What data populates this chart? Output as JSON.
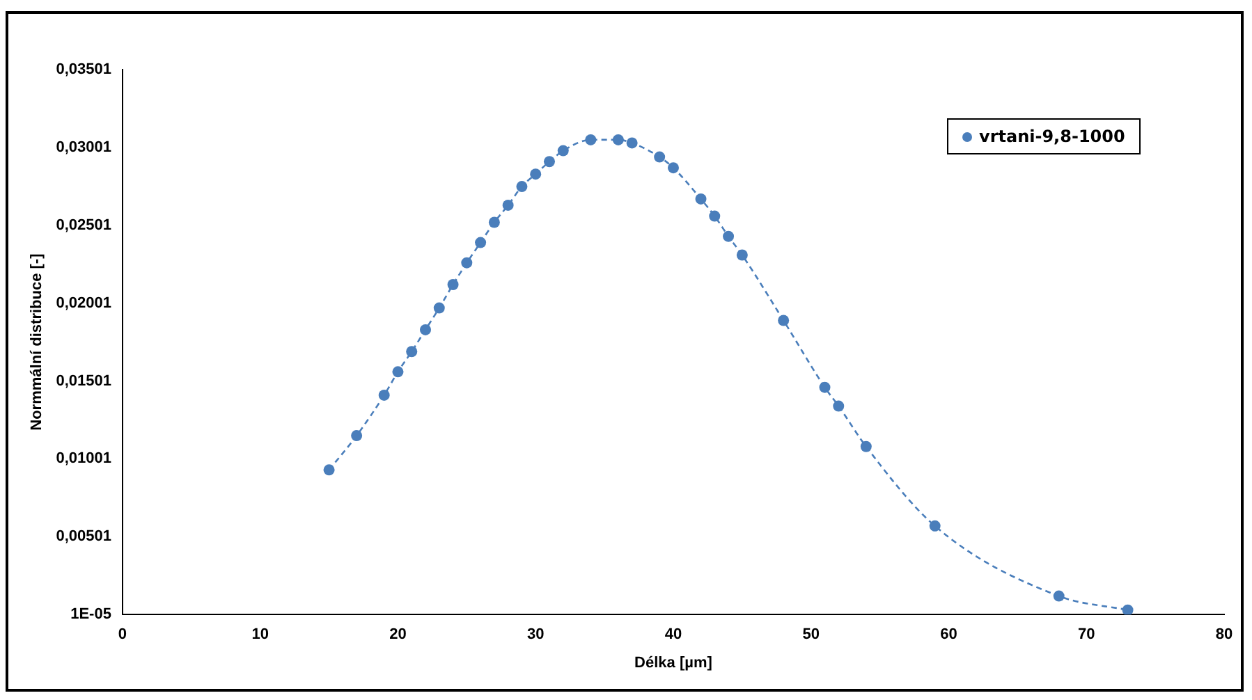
{
  "chart_data": {
    "type": "line",
    "xlabel": "Délka [µm]",
    "ylabel": "Normmální distribuce [-]",
    "x": [
      15,
      17,
      19,
      20,
      21,
      22,
      23,
      24,
      25,
      26,
      27,
      28,
      29,
      30,
      31,
      32,
      34,
      36,
      37,
      39,
      40,
      42,
      43,
      44,
      45,
      48,
      51,
      52,
      54,
      59,
      68,
      73
    ],
    "series": [
      {
        "name": "vrtani-9,8-1000",
        "color": "#4a7ebb",
        "values": [
          0.0093,
          0.0115,
          0.0141,
          0.0156,
          0.0169,
          0.0183,
          0.0197,
          0.0212,
          0.0226,
          0.0239,
          0.0252,
          0.0263,
          0.0275,
          0.0283,
          0.0291,
          0.0298,
          0.0305,
          0.0305,
          0.0303,
          0.0294,
          0.0287,
          0.0267,
          0.0256,
          0.0243,
          0.0231,
          0.0189,
          0.0146,
          0.0134,
          0.0108,
          0.0057,
          0.0012,
          0.0003
        ]
      }
    ],
    "xlim": [
      0,
      80
    ],
    "xticks": [
      0,
      10,
      20,
      30,
      40,
      50,
      60,
      70,
      80
    ],
    "ylim": [
      1e-05,
      0.03501
    ],
    "yticks": [
      {
        "value": 1e-05,
        "label": "1E-05"
      },
      {
        "value": 0.00501,
        "label": "0,00501"
      },
      {
        "value": 0.01001,
        "label": "0,01001"
      },
      {
        "value": 0.01501,
        "label": "0,01501"
      },
      {
        "value": 0.02001,
        "label": "0,02001"
      },
      {
        "value": 0.02501,
        "label": "0,02501"
      },
      {
        "value": 0.03001,
        "label": "0,03001"
      },
      {
        "value": 0.03501,
        "label": "0,03501"
      }
    ],
    "grid": false,
    "legend": "top right",
    "marker": "circle",
    "line_style": "dashed"
  }
}
